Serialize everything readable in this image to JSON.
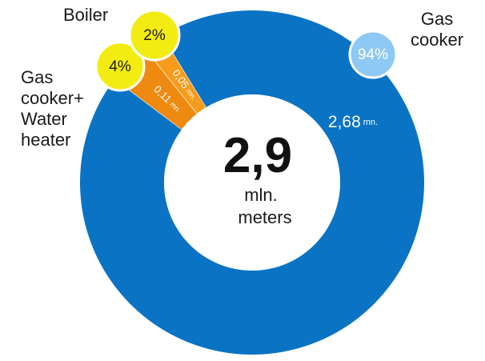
{
  "chart_data": {
    "type": "pie",
    "variant": "donut",
    "center": {
      "value": "2,9",
      "unit_line1": "mln.",
      "unit_line2": "meters"
    },
    "slices": [
      {
        "name_lines": [
          "Gas",
          "cooker"
        ],
        "percent": 94,
        "percent_label": "94%",
        "amount": "2,68",
        "unit": "mn.",
        "color": "#0a73c4",
        "badge_color": "#8ec8f4"
      },
      {
        "name_lines": [
          "Gas",
          "cooker+",
          "Water",
          "heater"
        ],
        "percent": 4,
        "percent_label": "4%",
        "amount": "0,11",
        "unit": "mn.",
        "color": "#ee8a10",
        "badge_color": "#f2ec12"
      },
      {
        "name_lines": [
          "Boiler"
        ],
        "percent": 2,
        "percent_label": "2%",
        "amount": "0,05",
        "unit": "mn.",
        "color": "#f59c1c",
        "badge_color": "#f2ec12"
      }
    ]
  }
}
